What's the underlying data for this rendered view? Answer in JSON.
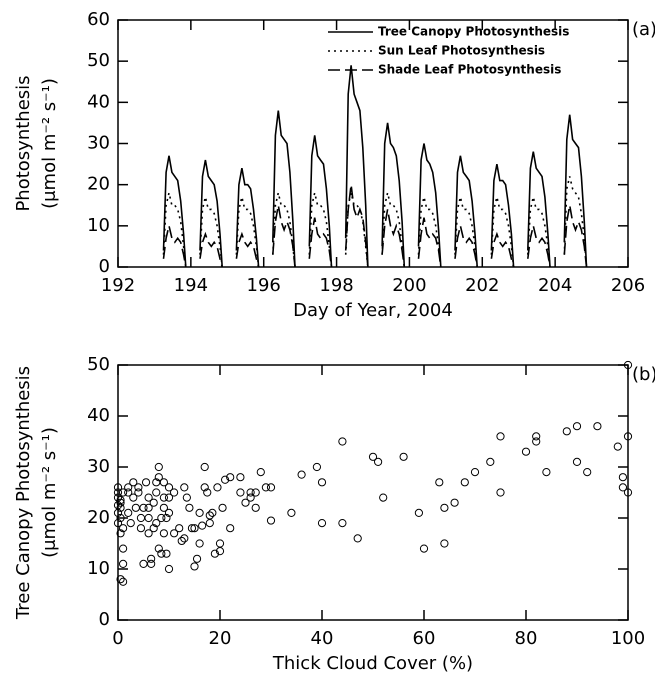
{
  "chart_data": [
    {
      "type": "line",
      "panel_label": "(a)",
      "xlabel": "Day of Year, 2004",
      "ylabel": [
        "Photosynthesis",
        "(μmol m⁻² s⁻¹)"
      ],
      "xlim": [
        192,
        206
      ],
      "xticks": [
        192,
        194,
        196,
        198,
        200,
        202,
        204,
        206
      ],
      "ylim": [
        0,
        60
      ],
      "yticks": [
        0,
        10,
        20,
        30,
        40,
        50,
        60
      ],
      "legend": "upper right",
      "x": [
        193.25,
        193.32,
        193.4,
        193.48,
        193.56,
        193.64,
        193.72,
        193.8,
        193.86,
        193.95,
        194.25,
        194.32,
        194.4,
        194.48,
        194.56,
        194.64,
        194.72,
        194.8,
        194.86,
        194.95,
        195.25,
        195.32,
        195.4,
        195.48,
        195.56,
        195.64,
        195.72,
        195.8,
        195.86,
        195.95,
        196.25,
        196.32,
        196.4,
        196.48,
        196.56,
        196.64,
        196.72,
        196.8,
        196.86,
        196.95,
        197.25,
        197.32,
        197.4,
        197.48,
        197.56,
        197.64,
        197.72,
        197.8,
        197.86,
        197.95,
        198.25,
        198.32,
        198.4,
        198.48,
        198.56,
        198.64,
        198.72,
        198.8,
        198.86,
        198.95,
        199.25,
        199.32,
        199.4,
        199.48,
        199.56,
        199.64,
        199.72,
        199.8,
        199.86,
        199.95,
        200.25,
        200.32,
        200.4,
        200.48,
        200.56,
        200.64,
        200.72,
        200.8,
        200.86,
        200.95,
        201.25,
        201.32,
        201.4,
        201.48,
        201.56,
        201.64,
        201.72,
        201.8,
        201.86,
        201.95,
        202.25,
        202.32,
        202.4,
        202.48,
        202.56,
        202.64,
        202.72,
        202.8,
        202.86,
        202.95,
        203.25,
        203.32,
        203.4,
        203.48,
        203.56,
        203.64,
        203.72,
        203.8,
        203.86,
        203.95,
        204.25,
        204.32,
        204.4,
        204.48,
        204.56,
        204.64,
        204.72,
        204.8,
        204.86,
        204.95
      ],
      "series": [
        {
          "name": "Tree Canopy Photosynthesis",
          "color": "#000000",
          "dash": "solid",
          "values": [
            4,
            23,
            27,
            23,
            22,
            21,
            16,
            8,
            0,
            null,
            4,
            22,
            26,
            22,
            21,
            20,
            16,
            8,
            0,
            null,
            4,
            20,
            24,
            20,
            20,
            19,
            14,
            7,
            0,
            null,
            6,
            32,
            38,
            32,
            31,
            30,
            23,
            11,
            0,
            null,
            5,
            27,
            32,
            27,
            26,
            25,
            19,
            10,
            0,
            null,
            7,
            42,
            49,
            42,
            40,
            38,
            29,
            15,
            0,
            null,
            5,
            30,
            35,
            30,
            29,
            27,
            21,
            11,
            0,
            null,
            5,
            26,
            30,
            26,
            25,
            23,
            18,
            9,
            0,
            null,
            4,
            23,
            27,
            23,
            22,
            21,
            16,
            8,
            0,
            null,
            4,
            21,
            25,
            21,
            21,
            20,
            15,
            8,
            0,
            null,
            4,
            24,
            28,
            24,
            23,
            22,
            17,
            8,
            0,
            null,
            6,
            31,
            37,
            31,
            30,
            29,
            22,
            11,
            0,
            null
          ]
        },
        {
          "name": "Sun Leaf Photosynthesis",
          "color": "#000000",
          "dash": "dotted",
          "values": [
            3,
            15,
            18,
            15,
            15,
            14,
            11,
            5,
            0,
            null,
            3,
            14,
            17,
            14,
            14,
            13,
            10,
            5,
            0,
            null,
            3,
            14,
            17,
            14,
            14,
            13,
            10,
            5,
            0,
            null,
            3,
            15,
            18,
            15,
            15,
            14,
            11,
            5,
            0,
            null,
            3,
            15,
            18,
            15,
            15,
            14,
            11,
            5,
            0,
            null,
            3,
            15,
            18,
            15,
            15,
            14,
            11,
            5,
            0,
            null,
            3,
            15,
            18,
            15,
            15,
            14,
            11,
            5,
            0,
            null,
            3,
            14,
            17,
            14,
            14,
            13,
            10,
            5,
            0,
            null,
            3,
            14,
            17,
            14,
            14,
            13,
            10,
            5,
            0,
            null,
            3,
            14,
            17,
            14,
            14,
            13,
            10,
            5,
            0,
            null,
            3,
            14,
            17,
            14,
            14,
            13,
            10,
            5,
            0,
            null,
            3,
            19,
            22,
            19,
            18,
            17,
            13,
            7,
            0,
            null
          ]
        },
        {
          "name": "Shade Leaf Photosynthesis",
          "color": "#000000",
          "dash": "dashed",
          "values": [
            2,
            7,
            10,
            7,
            6,
            7,
            6,
            3,
            0,
            null,
            2,
            6,
            8,
            6,
            5,
            6,
            5,
            2,
            0,
            null,
            2,
            6,
            8,
            6,
            5,
            6,
            5,
            2,
            0,
            null,
            3,
            11,
            15,
            11,
            9,
            11,
            9,
            5,
            0,
            null,
            2,
            8,
            12,
            8,
            7,
            8,
            7,
            4,
            0,
            null,
            4,
            14,
            20,
            14,
            12,
            14,
            12,
            6,
            0,
            null,
            3,
            10,
            14,
            10,
            8,
            10,
            8,
            4,
            0,
            null,
            2,
            8,
            12,
            8,
            7,
            8,
            7,
            4,
            0,
            null,
            2,
            7,
            10,
            7,
            6,
            7,
            6,
            3,
            0,
            null,
            2,
            6,
            8,
            6,
            5,
            6,
            5,
            2,
            0,
            null,
            2,
            7,
            10,
            7,
            6,
            7,
            6,
            3,
            0,
            null,
            3,
            11,
            15,
            11,
            9,
            11,
            9,
            5,
            0,
            null
          ]
        }
      ]
    },
    {
      "type": "scatter",
      "panel_label": "(b)",
      "xlabel": "Thick Cloud Cover (%)",
      "ylabel": [
        "Tree Canopy Photosynthesis",
        "(μmol m⁻² s⁻¹)"
      ],
      "xlim": [
        0,
        100
      ],
      "xticks": [
        0,
        20,
        40,
        60,
        80,
        100
      ],
      "ylim": [
        0,
        50
      ],
      "yticks": [
        0,
        10,
        20,
        30,
        40,
        50
      ],
      "color": "#000000",
      "x": [
        0,
        0,
        0,
        0.5,
        0.5,
        0,
        0.5,
        0,
        1,
        0.5,
        1,
        1,
        0.5,
        1,
        0.5,
        1,
        0,
        2,
        2,
        2,
        2.5,
        3,
        3,
        3.5,
        4,
        4,
        4.5,
        4.5,
        5,
        5,
        5.5,
        6,
        6,
        6,
        6,
        6.5,
        6.5,
        7,
        7,
        7.5,
        7.5,
        7.5,
        8,
        8,
        8,
        8.5,
        8.5,
        9,
        9,
        9,
        9,
        9.5,
        9.5,
        10,
        10,
        10,
        10,
        11,
        11,
        12,
        12.5,
        13,
        13,
        13.5,
        14,
        14.5,
        15,
        15,
        15.5,
        16,
        16,
        16.5,
        17,
        17,
        17.5,
        18,
        18,
        18.5,
        19,
        19.5,
        20,
        20,
        20.5,
        21,
        22,
        22,
        24,
        24,
        25,
        26,
        26,
        27,
        27,
        28,
        29,
        30,
        30,
        34,
        36,
        39,
        40,
        40,
        44,
        44,
        47,
        50,
        51,
        52,
        56,
        59,
        60,
        63,
        64,
        64,
        66,
        68,
        70,
        73,
        75,
        75,
        80,
        82,
        82,
        84,
        88,
        90,
        90,
        92,
        94,
        98,
        99,
        99,
        100,
        100,
        100
      ],
      "values": [
        26,
        25,
        24,
        23,
        22,
        21,
        20,
        19,
        18,
        17,
        14,
        11,
        8,
        7.5,
        23.5,
        25,
        22.5,
        26,
        25,
        21,
        19,
        24,
        27,
        22,
        25,
        26,
        20,
        18,
        22,
        11,
        27,
        24,
        22,
        20,
        17,
        12,
        11,
        23,
        18,
        27,
        25,
        19,
        30,
        28,
        14,
        20,
        13,
        27,
        24,
        22,
        17,
        20,
        13,
        26,
        24,
        21,
        10,
        25,
        17,
        18,
        15.5,
        16,
        26,
        24,
        22,
        18,
        18,
        10.5,
        12,
        21,
        15,
        18.5,
        30,
        26,
        25,
        20.5,
        19,
        21,
        13,
        26,
        15,
        13.5,
        22,
        27.5,
        18,
        28,
        25,
        28,
        23,
        24,
        25,
        22,
        25,
        29,
        26,
        19.5,
        26,
        21,
        28.5,
        30,
        19,
        27,
        35,
        19,
        16,
        32,
        31,
        24,
        32,
        21,
        14,
        27,
        15,
        22,
        23,
        27,
        29,
        31,
        36,
        25,
        33,
        36,
        35,
        29,
        37,
        38,
        31,
        29,
        38,
        34,
        28,
        26,
        50,
        36,
        25
      ]
    }
  ]
}
